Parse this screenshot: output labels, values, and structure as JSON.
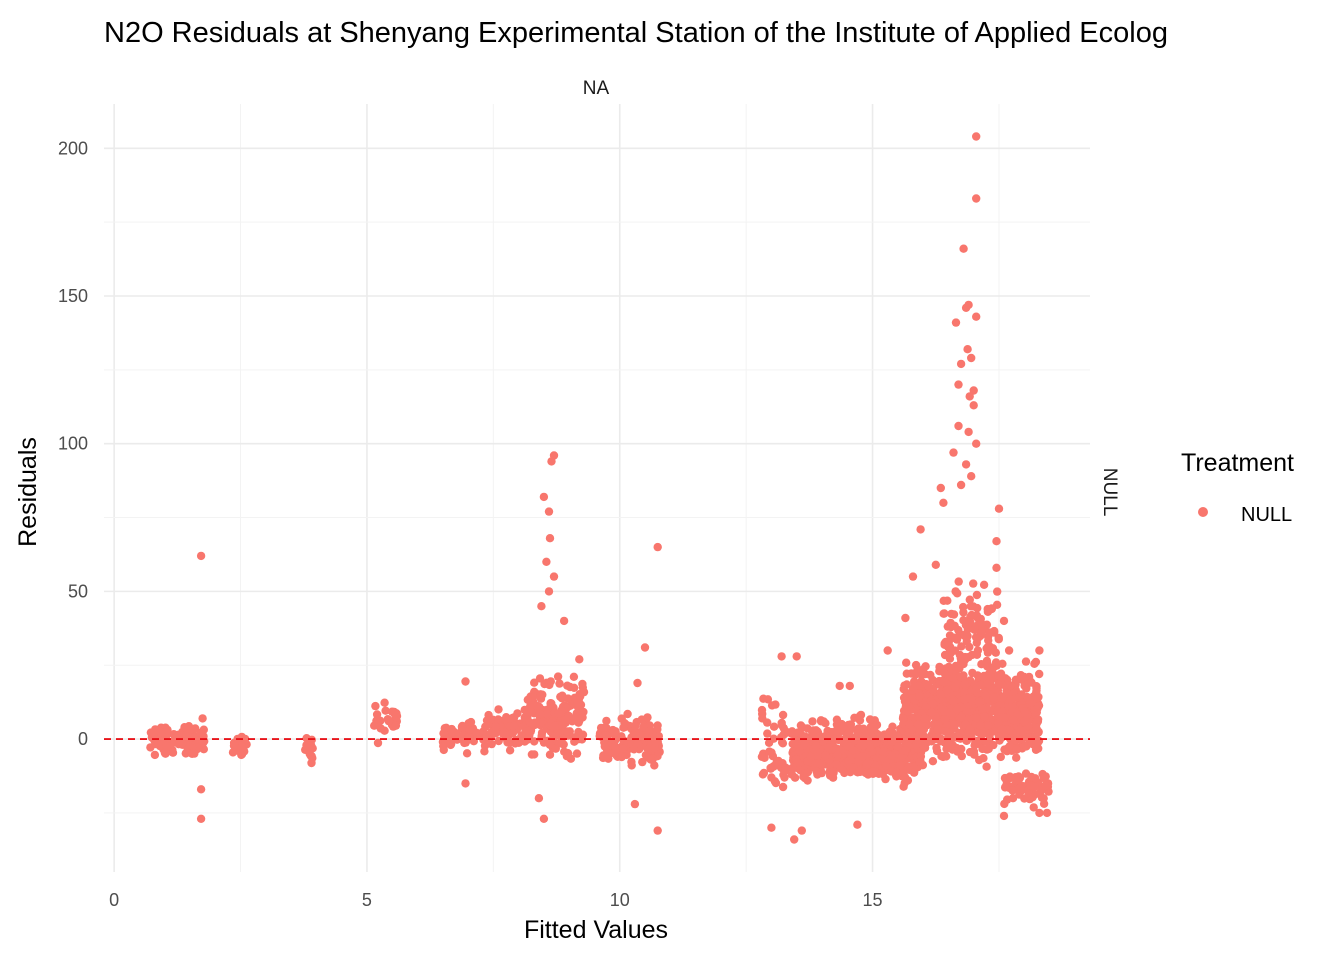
{
  "chart_data": {
    "type": "scatter",
    "title": "N2O Residuals at Shenyang Experimental Station of the Institute of Applied Ecolog",
    "facet_col_label": "NA",
    "facet_row_label": "NULL",
    "xlabel": "Fitted Values",
    "ylabel": "Residuals",
    "xlim": [
      -0.2,
      19.3
    ],
    "ylim": [
      -45,
      215
    ],
    "x_ticks": [
      0,
      5,
      10,
      15
    ],
    "y_ticks": [
      0,
      50,
      100,
      150,
      200
    ],
    "grid": true,
    "reference_line": {
      "y": 0,
      "style": "dashed",
      "color": "#e8151b"
    },
    "legend": {
      "title": "Treatment",
      "position": "right",
      "entries": [
        {
          "label": "NULL",
          "color": "#f8766d"
        }
      ]
    },
    "series": [
      {
        "name": "NULL",
        "color": "#f8766d",
        "clusters": [
          {
            "x": [
              0.7,
              1.8
            ],
            "y": [
              -7,
              6
            ],
            "density": 2.0
          },
          {
            "x": [
              2.35,
              2.65
            ],
            "y": [
              -8,
              4
            ],
            "density": 1.4
          },
          {
            "x": [
              3.75,
              3.95
            ],
            "y": [
              -11,
              3
            ],
            "density": 1.2
          },
          {
            "x": [
              5.1,
              5.6
            ],
            "y": [
              -3,
              14
            ],
            "density": 1.2
          },
          {
            "x": [
              6.5,
              7.4
            ],
            "y": [
              -6,
              9
            ],
            "density": 1.4
          },
          {
            "x": [
              7.4,
              8.2
            ],
            "y": [
              -5,
              12
            ],
            "density": 1.6
          },
          {
            "x": [
              8.1,
              9.3
            ],
            "y": [
              -10,
              25
            ],
            "density": 3.0
          },
          {
            "x": [
              9.6,
              10.8
            ],
            "y": [
              -12,
              10
            ],
            "density": 2.4
          },
          {
            "x": [
              12.8,
              13.3
            ],
            "y": [
              -30,
              20
            ],
            "density": 2.0
          },
          {
            "x": [
              13.4,
              16.0
            ],
            "y": [
              -18,
              10
            ],
            "density": 5.0
          },
          {
            "x": [
              15.6,
              18.3
            ],
            "y": [
              -12,
              30
            ],
            "density": 6.0
          },
          {
            "x": [
              16.4,
              17.5
            ],
            "y": [
              0,
              65
            ],
            "density": 2.5
          },
          {
            "x": [
              17.6,
              18.5
            ],
            "y": [
              -25,
              -8
            ],
            "density": 1.4
          }
        ],
        "outliers": [
          [
            1.72,
            62
          ],
          [
            1.72,
            -17
          ],
          [
            1.72,
            -27
          ],
          [
            1.75,
            7
          ],
          [
            6.95,
            19.5
          ],
          [
            6.95,
            -15
          ],
          [
            8.5,
            82
          ],
          [
            8.6,
            77
          ],
          [
            8.65,
            94
          ],
          [
            8.7,
            96
          ],
          [
            8.62,
            68
          ],
          [
            8.55,
            60
          ],
          [
            8.7,
            55
          ],
          [
            8.45,
            45
          ],
          [
            8.5,
            -27
          ],
          [
            8.4,
            -20
          ],
          [
            9.2,
            27
          ],
          [
            8.9,
            40
          ],
          [
            8.6,
            50
          ],
          [
            10.5,
            31
          ],
          [
            10.75,
            65
          ],
          [
            10.75,
            -31
          ],
          [
            10.35,
            19
          ],
          [
            10.3,
            -22
          ],
          [
            13.0,
            -30
          ],
          [
            13.2,
            28
          ],
          [
            13.45,
            -34
          ],
          [
            13.5,
            28
          ],
          [
            13.6,
            -31
          ],
          [
            14.35,
            18
          ],
          [
            14.55,
            18
          ],
          [
            14.7,
            -29
          ],
          [
            15.3,
            30
          ],
          [
            15.65,
            41
          ],
          [
            15.95,
            71
          ],
          [
            16.25,
            59
          ],
          [
            15.8,
            55
          ],
          [
            16.4,
            80
          ],
          [
            16.35,
            85
          ],
          [
            16.65,
            141
          ],
          [
            16.85,
            146
          ],
          [
            16.9,
            147
          ],
          [
            17.05,
            143
          ],
          [
            16.8,
            166
          ],
          [
            17.05,
            183
          ],
          [
            17.05,
            204
          ],
          [
            16.7,
            120
          ],
          [
            16.75,
            127
          ],
          [
            16.88,
            132
          ],
          [
            16.95,
            129
          ],
          [
            17.0,
            118
          ],
          [
            16.92,
            116
          ],
          [
            17.0,
            113
          ],
          [
            17.05,
            100
          ],
          [
            16.9,
            104
          ],
          [
            16.7,
            106
          ],
          [
            16.6,
            97
          ],
          [
            16.75,
            86
          ],
          [
            16.85,
            93
          ],
          [
            16.95,
            89
          ],
          [
            17.5,
            78
          ],
          [
            17.45,
            67
          ],
          [
            17.45,
            58
          ],
          [
            17.6,
            40
          ],
          [
            17.7,
            30
          ],
          [
            18.0,
            21
          ],
          [
            18.3,
            30
          ],
          [
            17.6,
            -26
          ],
          [
            18.3,
            -25
          ],
          [
            18.45,
            -25
          ]
        ]
      }
    ]
  }
}
